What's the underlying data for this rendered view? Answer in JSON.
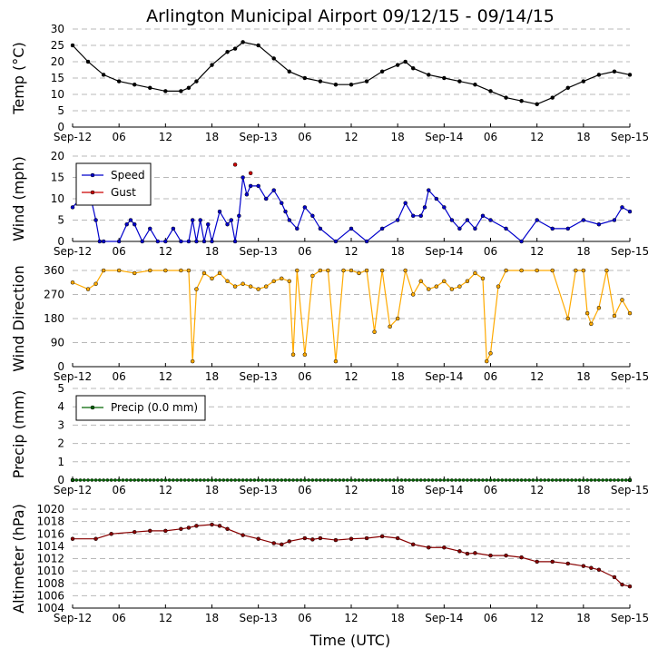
{
  "chart_data": {
    "title": "Arlington Municipal Airport 09/12/15 - 09/14/15",
    "xlabel": "Time (UTC)",
    "x_ticks": [
      "Sep-12",
      "06",
      "12",
      "18",
      "Sep-13",
      "06",
      "12",
      "18",
      "Sep-14",
      "06",
      "12",
      "18",
      "Sep-15"
    ],
    "x_range_hours": [
      0,
      72
    ],
    "panels": [
      {
        "type": "line",
        "ylabel": "Temp (°C)",
        "ylim": [
          0,
          30
        ],
        "yticks": [
          0,
          5,
          10,
          15,
          20,
          25,
          30
        ],
        "grid": true,
        "series": [
          {
            "color": "#000000",
            "x": [
              0,
              2,
              4,
              6,
              8,
              10,
              12,
              14,
              15,
              16,
              18,
              20,
              21,
              22,
              24,
              26,
              28,
              30,
              32,
              34,
              36,
              38,
              40,
              42,
              43,
              44,
              46,
              48,
              50,
              52,
              54,
              56,
              58,
              60,
              62,
              64,
              66,
              68,
              70,
              72
            ],
            "values": [
              25,
              20,
              16,
              14,
              13,
              12,
              11,
              11,
              12,
              14,
              19,
              23,
              24,
              26,
              25,
              21,
              17,
              15,
              14,
              13,
              13,
              14,
              17,
              19,
              20,
              18,
              16,
              15,
              14,
              13,
              11,
              9,
              8,
              7,
              9,
              12,
              14,
              16,
              17,
              16
            ]
          }
        ]
      },
      {
        "type": "line",
        "ylabel": "Wind (mph)",
        "ylim": [
          0,
          20
        ],
        "yticks": [
          0,
          5,
          10,
          15,
          20
        ],
        "grid": true,
        "legend": "top-left",
        "series": [
          {
            "name": "Speed",
            "color": "#0000cc",
            "x": [
              0,
              1,
              2,
              2.5,
              3,
              3.5,
              4,
              6,
              7,
              7.5,
              8,
              9,
              10,
              11,
              12,
              13,
              14,
              15,
              15.5,
              16,
              16.5,
              17,
              17.5,
              18,
              19,
              20,
              20.5,
              21,
              21.5,
              22,
              22.5,
              23,
              24,
              25,
              26,
              27,
              27.5,
              28,
              29,
              30,
              31,
              32,
              34,
              36,
              38,
              40,
              42,
              43,
              44,
              45,
              45.5,
              46,
              47,
              48,
              49,
              50,
              51,
              52,
              53,
              54,
              56,
              58,
              60,
              62,
              64,
              66,
              68,
              70,
              71,
              72
            ],
            "values": [
              8,
              10,
              11,
              9,
              5,
              0,
              0,
              0,
              4,
              5,
              4,
              0,
              3,
              0,
              0,
              3,
              0,
              0,
              5,
              0,
              5,
              0,
              4,
              0,
              7,
              4,
              5,
              0,
              6,
              15,
              11,
              13,
              13,
              10,
              12,
              9,
              7,
              5,
              3,
              8,
              6,
              3,
              0,
              3,
              0,
              3,
              5,
              9,
              6,
              6,
              8,
              12,
              10,
              8,
              5,
              3,
              5,
              3,
              6,
              5,
              3,
              0,
              5,
              3,
              3,
              5,
              4,
              5,
              8,
              7
            ]
          },
          {
            "name": "Gust",
            "color": "#cc0000",
            "x": [
              21,
              23
            ],
            "values": [
              18,
              16
            ]
          }
        ]
      },
      {
        "type": "scatter",
        "ylabel": "Wind Direction",
        "ylim": [
          0,
          360
        ],
        "yticks": [
          0,
          90,
          180,
          270,
          360
        ],
        "grid": true,
        "series": [
          {
            "color": "#ffaa00",
            "x": [
              0,
              2,
              3,
              4,
              6,
              8,
              10,
              12,
              14,
              15,
              15.5,
              16,
              17,
              18,
              19,
              20,
              21,
              22,
              23,
              24,
              25,
              26,
              27,
              28,
              28.5,
              29,
              30,
              31,
              32,
              33,
              34,
              35,
              36,
              37,
              38,
              39,
              40,
              41,
              42,
              43,
              44,
              45,
              46,
              47,
              48,
              49,
              50,
              51,
              52,
              53,
              53.5,
              54,
              55,
              56,
              58,
              60,
              62,
              64,
              65,
              66,
              66.5,
              67,
              68,
              69,
              70,
              71,
              72
            ],
            "values": [
              315,
              290,
              310,
              360,
              360,
              350,
              360,
              360,
              360,
              360,
              20,
              290,
              350,
              330,
              350,
              320,
              300,
              310,
              300,
              290,
              300,
              320,
              330,
              320,
              45,
              360,
              45,
              340,
              360,
              360,
              20,
              360,
              360,
              350,
              360,
              130,
              360,
              150,
              180,
              360,
              270,
              320,
              290,
              300,
              320,
              290,
              300,
              320,
              350,
              330,
              20,
              50,
              300,
              360,
              360,
              360,
              360,
              180,
              360,
              360,
              200,
              160,
              220,
              360,
              190,
              250,
              200
            ]
          }
        ]
      },
      {
        "type": "line",
        "ylabel": "Precip (mm)",
        "ylim": [
          0,
          5
        ],
        "yticks": [
          0,
          1,
          2,
          3,
          4,
          5
        ],
        "grid": true,
        "legend": "top-left",
        "series": [
          {
            "name": "Precip (0.0 mm)",
            "color": "#006600",
            "x": [
              0,
              72
            ],
            "values": [
              0,
              0
            ]
          }
        ]
      },
      {
        "type": "line",
        "ylabel": "Altimeter (hPa)",
        "ylim": [
          1004,
          1020
        ],
        "yticks": [
          1004,
          1006,
          1008,
          1010,
          1012,
          1014,
          1016,
          1018,
          1020
        ],
        "grid": true,
        "series": [
          {
            "color": "#880000",
            "x": [
              0,
              3,
              5,
              8,
              10,
              12,
              14,
              15,
              16,
              18,
              19,
              20,
              22,
              24,
              26,
              27,
              28,
              30,
              31,
              32,
              34,
              36,
              38,
              40,
              42,
              44,
              46,
              48,
              50,
              51,
              52,
              54,
              56,
              58,
              60,
              62,
              64,
              66,
              67,
              68,
              70,
              71,
              72
            ],
            "values": [
              1015.2,
              1015.2,
              1016,
              1016.3,
              1016.5,
              1016.5,
              1016.8,
              1017,
              1017.3,
              1017.5,
              1017.3,
              1016.8,
              1015.8,
              1015.2,
              1014.5,
              1014.3,
              1014.8,
              1015.3,
              1015.1,
              1015.3,
              1015,
              1015.2,
              1015.3,
              1015.6,
              1015.3,
              1014.3,
              1013.8,
              1013.8,
              1013.2,
              1012.8,
              1012.9,
              1012.5,
              1012.5,
              1012.2,
              1011.5,
              1011.5,
              1011.2,
              1010.8,
              1010.5,
              1010.2,
              1009,
              1007.8,
              1007.5
            ]
          }
        ]
      }
    ]
  }
}
